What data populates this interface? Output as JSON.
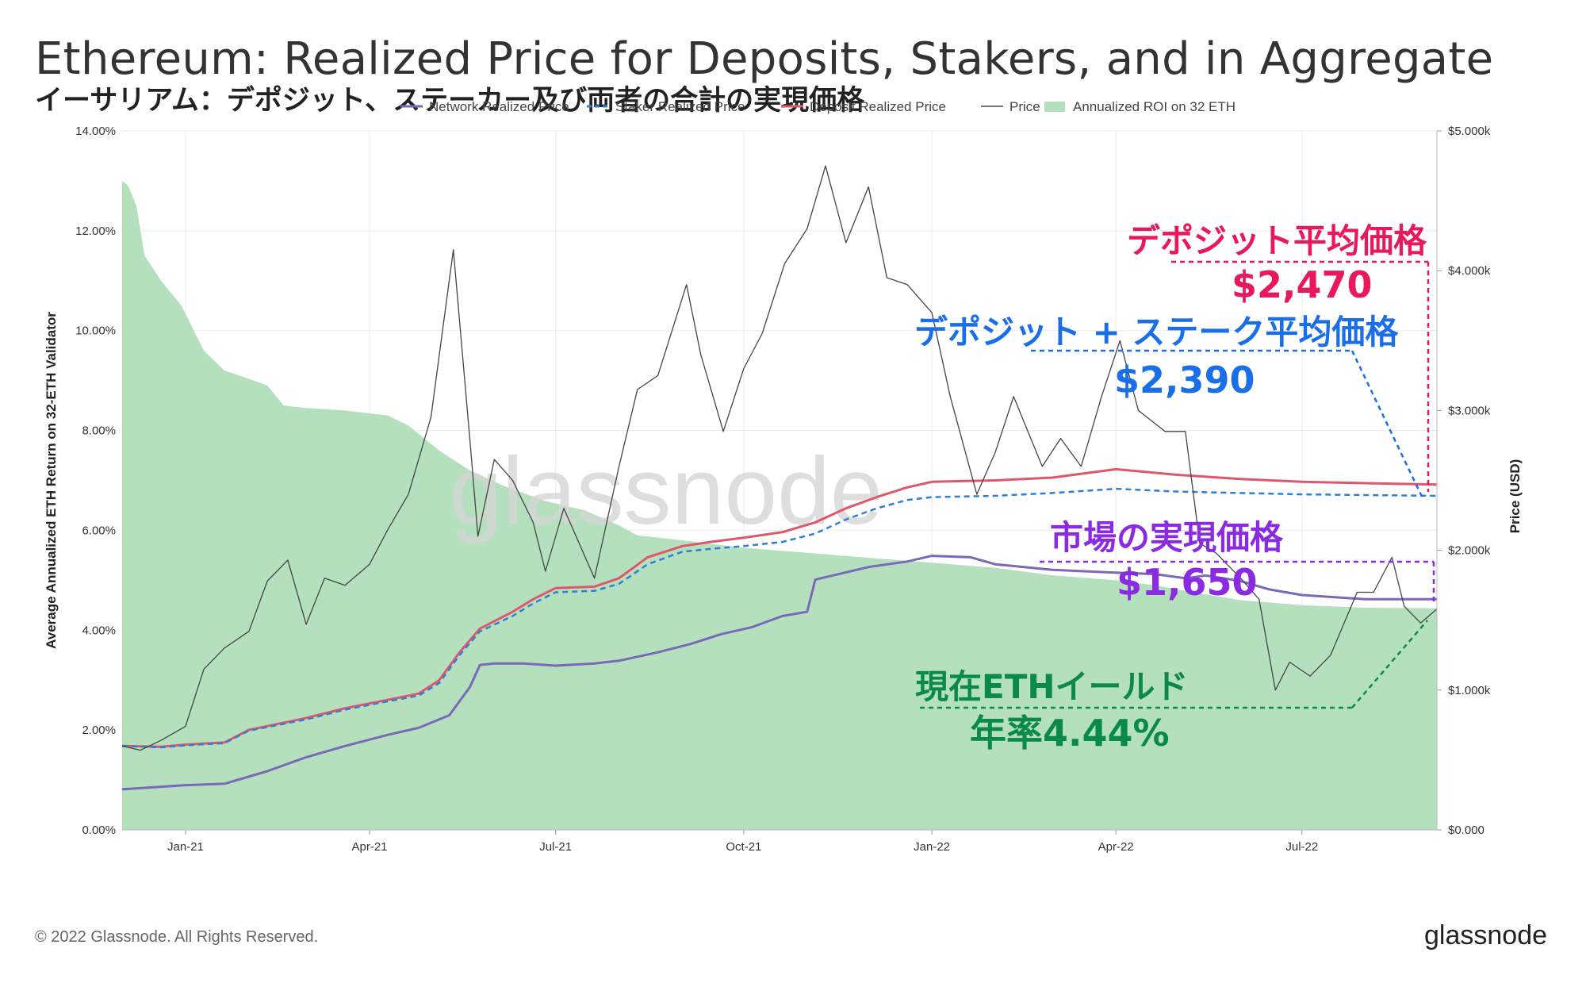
{
  "header": {
    "title": "Ethereum: Realized Price for Deposits, Stakers, and in Aggregate",
    "subtitle": "イーサリアム：デポジット、ステーカー及び両者の合計の実現価格"
  },
  "footer": {
    "copyright": "© 2022 Glassnode. All Rights Reserved.",
    "logo": "glassnode"
  },
  "watermark": "glassnode",
  "annotations": {
    "deposit_label": "デポジット平均価格",
    "deposit_value": "$2,470",
    "staker_label": "デポジット + ステーク平均価格",
    "staker_value": "$2,390",
    "network_label": "市場の実現価格",
    "network_value": "$1,650",
    "roi_label": "現在ETHイールド",
    "roi_value": "年率4.44%"
  },
  "colors": {
    "network": "#7b68b8",
    "staker": "#2f7fd6",
    "deposit": "#e0566d",
    "price": "#444444",
    "roi_fill": "#b5e0bd",
    "ann_deposit": "#e8185a",
    "ann_staker": "#1a6fe8",
    "ann_network": "#8a2be2",
    "ann_roi": "#0a8a4a"
  },
  "chart_data": {
    "type": "line",
    "ylabel": "Average Annualized ETH Return on 32-ETH Validator",
    "y2label": "Price (USD)",
    "ylim": [
      0,
      14
    ],
    "y2lim": [
      0,
      5000
    ],
    "y_ticks": [
      "0.00%",
      "2.00%",
      "4.00%",
      "6.00%",
      "8.00%",
      "10.00%",
      "12.00%",
      "14.00%"
    ],
    "y2_ticks": [
      "$0.000",
      "$1.000k",
      "$2.000k",
      "$3.000k",
      "$4.000k",
      "$5.000k"
    ],
    "x_ticks": [
      "Jan-21",
      "Apr-21",
      "Jul-21",
      "Oct-21",
      "Jan-22",
      "Apr-22",
      "Jul-22"
    ],
    "legend": {
      "position": "top",
      "entries": [
        {
          "name": "Network Realized Price",
          "style": "line",
          "color": "#7b68b8"
        },
        {
          "name": "Staker Realized Price",
          "style": "dashed",
          "color": "#2f7fd6"
        },
        {
          "name": "Deposit Realized Price",
          "style": "line",
          "color": "#e0566d"
        },
        {
          "name": "Price",
          "style": "thin",
          "color": "#444444"
        },
        {
          "name": "Annualized ROI on 32 ETH",
          "style": "area",
          "color": "#b5e0bd"
        }
      ]
    },
    "x_start": "2020-12-01",
    "x_end": "2022-09-05",
    "series": [
      {
        "name": "Annualized ROI on 32 ETH",
        "axis": "left",
        "type": "area",
        "x": [
          "2020-12-01",
          "2020-12-04",
          "2020-12-08",
          "2020-12-12",
          "2020-12-20",
          "2020-12-30",
          "2021-01-10",
          "2021-01-20",
          "2021-01-24",
          "2021-02-10",
          "2021-02-18",
          "2021-03-01",
          "2021-03-20",
          "2021-04-10",
          "2021-04-20",
          "2021-05-05",
          "2021-05-20",
          "2021-06-05",
          "2021-06-25",
          "2021-07-15",
          "2021-08-01",
          "2021-08-10",
          "2021-09-01",
          "2021-10-01",
          "2021-11-01",
          "2021-12-01",
          "2022-01-01",
          "2022-02-01",
          "2022-03-01",
          "2022-04-01",
          "2022-04-20",
          "2022-05-10",
          "2022-06-01",
          "2022-07-01",
          "2022-08-01",
          "2022-09-05"
        ],
        "values": [
          13.0,
          12.9,
          12.5,
          11.5,
          11.0,
          10.5,
          9.6,
          9.2,
          9.15,
          8.9,
          8.5,
          8.45,
          8.4,
          8.3,
          8.1,
          7.6,
          7.2,
          6.9,
          6.6,
          6.4,
          6.1,
          5.9,
          5.8,
          5.65,
          5.55,
          5.45,
          5.35,
          5.25,
          5.1,
          5.0,
          4.9,
          4.75,
          4.6,
          4.5,
          4.45,
          4.44
        ]
      },
      {
        "name": "Network Realized Price",
        "axis": "right",
        "x": [
          "2020-12-01",
          "2021-01-01",
          "2021-01-20",
          "2021-02-10",
          "2021-03-01",
          "2021-03-20",
          "2021-04-10",
          "2021-04-25",
          "2021-05-10",
          "2021-05-20",
          "2021-05-25",
          "2021-06-01",
          "2021-06-15",
          "2021-07-01",
          "2021-07-20",
          "2021-08-01",
          "2021-08-20",
          "2021-09-05",
          "2021-09-20",
          "2021-10-05",
          "2021-10-20",
          "2021-11-01",
          "2021-11-05",
          "2021-12-01",
          "2021-12-20",
          "2022-01-01",
          "2022-01-20",
          "2022-02-01",
          "2022-03-01",
          "2022-04-01",
          "2022-04-20",
          "2022-05-05",
          "2022-05-15",
          "2022-06-01",
          "2022-06-15",
          "2022-07-01",
          "2022-08-01",
          "2022-09-05"
        ],
        "values": [
          290,
          320,
          330,
          420,
          520,
          600,
          680,
          730,
          820,
          1020,
          1180,
          1190,
          1190,
          1175,
          1190,
          1210,
          1270,
          1330,
          1400,
          1450,
          1530,
          1560,
          1790,
          1880,
          1920,
          1960,
          1950,
          1900,
          1860,
          1840,
          1830,
          1800,
          1820,
          1780,
          1720,
          1680,
          1650,
          1650
        ]
      },
      {
        "name": "Staker Realized Price",
        "axis": "right",
        "dashed": true,
        "x": [
          "2020-12-01",
          "2020-12-20",
          "2021-01-01",
          "2021-01-20",
          "2021-02-01",
          "2021-03-01",
          "2021-03-20",
          "2021-04-10",
          "2021-04-25",
          "2021-05-05",
          "2021-05-15",
          "2021-05-25",
          "2021-06-10",
          "2021-06-20",
          "2021-07-01",
          "2021-07-20",
          "2021-08-01",
          "2021-08-15",
          "2021-09-01",
          "2021-09-15",
          "2021-10-01",
          "2021-10-20",
          "2021-11-05",
          "2021-11-20",
          "2021-12-05",
          "2021-12-20",
          "2022-01-01",
          "2022-02-01",
          "2022-03-01",
          "2022-04-01",
          "2022-05-01",
          "2022-06-01",
          "2022-07-01",
          "2022-08-01",
          "2022-09-05"
        ],
        "values": [
          600,
          590,
          605,
          620,
          710,
          790,
          860,
          920,
          960,
          1050,
          1250,
          1420,
          1530,
          1620,
          1700,
          1710,
          1760,
          1900,
          1990,
          2010,
          2030,
          2060,
          2120,
          2220,
          2300,
          2360,
          2380,
          2390,
          2410,
          2440,
          2420,
          2410,
          2400,
          2395,
          2390
        ]
      },
      {
        "name": "Deposit Realized Price",
        "axis": "right",
        "x": [
          "2020-12-01",
          "2020-12-20",
          "2021-01-01",
          "2021-01-20",
          "2021-02-01",
          "2021-03-01",
          "2021-03-20",
          "2021-04-10",
          "2021-04-25",
          "2021-05-05",
          "2021-05-15",
          "2021-05-25",
          "2021-06-10",
          "2021-06-20",
          "2021-07-01",
          "2021-07-20",
          "2021-08-01",
          "2021-08-15",
          "2021-09-01",
          "2021-09-15",
          "2021-10-01",
          "2021-10-20",
          "2021-11-05",
          "2021-11-20",
          "2021-12-05",
          "2021-12-20",
          "2022-01-01",
          "2022-02-01",
          "2022-03-01",
          "2022-04-01",
          "2022-05-01",
          "2022-06-01",
          "2022-07-01",
          "2022-08-01",
          "2022-09-05"
        ],
        "values": [
          600,
          595,
          610,
          625,
          715,
          800,
          870,
          930,
          975,
          1070,
          1270,
          1440,
          1560,
          1650,
          1730,
          1740,
          1800,
          1950,
          2030,
          2060,
          2090,
          2130,
          2200,
          2300,
          2380,
          2450,
          2490,
          2500,
          2520,
          2580,
          2540,
          2510,
          2490,
          2480,
          2470
        ]
      },
      {
        "name": "Price",
        "axis": "right",
        "thin": true,
        "x": [
          "2020-12-01",
          "2020-12-10",
          "2020-12-20",
          "2021-01-01",
          "2021-01-10",
          "2021-01-20",
          "2021-02-01",
          "2021-02-10",
          "2021-02-20",
          "2021-03-01",
          "2021-03-10",
          "2021-03-20",
          "2021-04-01",
          "2021-04-10",
          "2021-04-20",
          "2021-05-01",
          "2021-05-12",
          "2021-05-20",
          "2021-05-24",
          "2021-06-01",
          "2021-06-10",
          "2021-06-20",
          "2021-06-26",
          "2021-07-05",
          "2021-07-20",
          "2021-08-01",
          "2021-08-10",
          "2021-08-20",
          "2021-09-03",
          "2021-09-10",
          "2021-09-21",
          "2021-10-01",
          "2021-10-10",
          "2021-10-21",
          "2021-11-01",
          "2021-11-10",
          "2021-11-20",
          "2021-12-01",
          "2021-12-10",
          "2021-12-20",
          "2022-01-01",
          "2022-01-10",
          "2022-01-23",
          "2022-02-01",
          "2022-02-10",
          "2022-02-24",
          "2022-03-05",
          "2022-03-15",
          "2022-03-25",
          "2022-04-03",
          "2022-04-12",
          "2022-04-25",
          "2022-05-05",
          "2022-05-12",
          "2022-05-20",
          "2022-06-01",
          "2022-06-10",
          "2022-06-18",
          "2022-06-25",
          "2022-07-05",
          "2022-07-15",
          "2022-07-28",
          "2022-08-05",
          "2022-08-14",
          "2022-08-20",
          "2022-08-28",
          "2022-09-05"
        ],
        "values": [
          600,
          570,
          640,
          740,
          1150,
          1300,
          1420,
          1780,
          1930,
          1470,
          1800,
          1750,
          1900,
          2150,
          2400,
          2950,
          4150,
          2800,
          2100,
          2650,
          2500,
          2200,
          1850,
          2300,
          1800,
          2600,
          3150,
          3250,
          3900,
          3400,
          2850,
          3300,
          3550,
          4050,
          4300,
          4750,
          4200,
          4600,
          3950,
          3900,
          3700,
          3100,
          2400,
          2700,
          3100,
          2600,
          2800,
          2600,
          3100,
          3500,
          3000,
          2850,
          2850,
          2050,
          1980,
          1800,
          1650,
          1000,
          1200,
          1100,
          1250,
          1700,
          1700,
          1950,
          1600,
          1480,
          1580
        ]
      }
    ]
  }
}
